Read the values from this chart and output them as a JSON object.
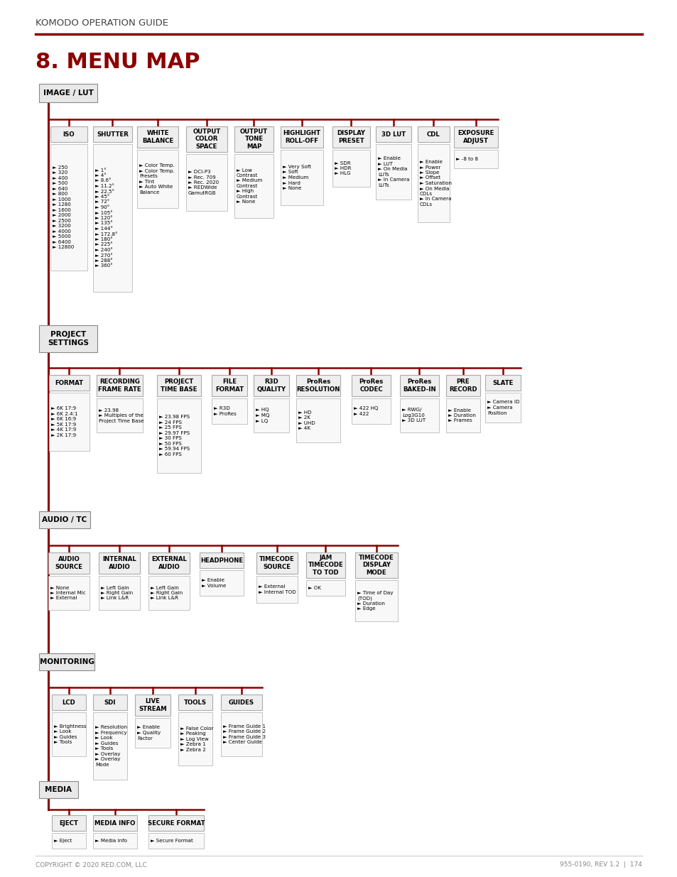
{
  "title_header": "KOMODO OPERATION GUIDE",
  "title_section": "8. MENU MAP",
  "bg_color": "#ffffff",
  "dark_red": "#8B0000",
  "footer_left": "COPYRIGHT © 2020 RED.COM, LLC",
  "footer_right": "955-0190, REV 1.2  |  174",
  "fig_w": 954,
  "fig_h": 1235
}
